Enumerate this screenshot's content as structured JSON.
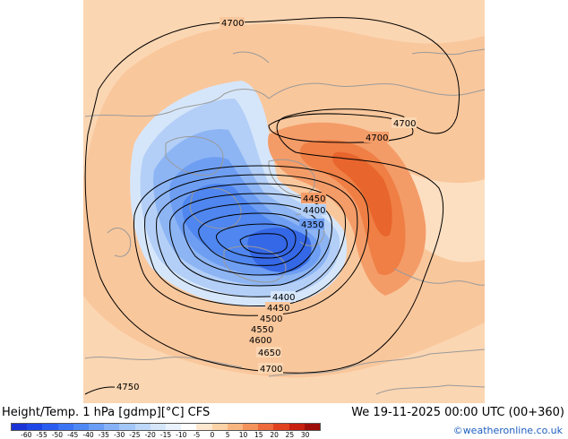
{
  "footer": {
    "title": "Height/Temp. 1 hPa [gdmp][°C] CFS",
    "datetime": "We 19-11-2025 00:00 UTC (00+360)",
    "credit": "©weatheronline.co.uk"
  },
  "legend": {
    "ticks": [
      "-60",
      "-55",
      "-50",
      "-45",
      "-40",
      "-35",
      "-30",
      "-25",
      "-20",
      "-15",
      "-10",
      "-5",
      "0",
      "5",
      "10",
      "15",
      "20",
      "25",
      "30"
    ],
    "colors": [
      "#1a33d6",
      "#1e46e6",
      "#2a5cf0",
      "#3a73f4",
      "#4e88f5",
      "#6a9ef6",
      "#86b3f7",
      "#a2c7f8",
      "#bcd7f9",
      "#d5e6fb",
      "#eaf2fd",
      "#ffffff",
      "#fde8cf",
      "#fbd3a6",
      "#f8b680",
      "#f4935c",
      "#ee6a3c",
      "#e0421f",
      "#c71f10",
      "#9e0e08"
    ]
  },
  "contours": {
    "labels": [
      "4700",
      "4700",
      "4700",
      "4450",
      "4400",
      "4350",
      "4400",
      "4450",
      "4500",
      "4550",
      "4600",
      "4650",
      "4700",
      "4750"
    ]
  }
}
